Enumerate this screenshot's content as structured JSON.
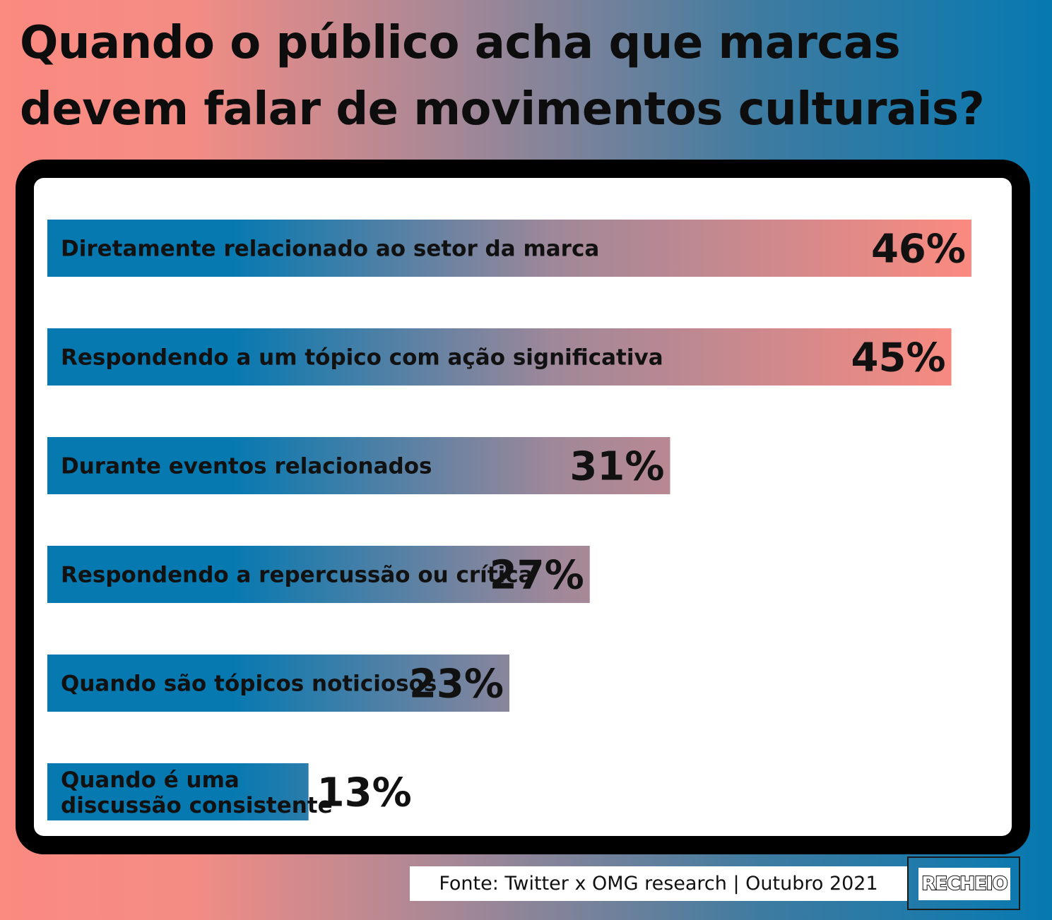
{
  "title_lines": [
    "Quando o público acha que marcas",
    "devem falar de movimentos culturais?"
  ],
  "chart_data": {
    "type": "bar",
    "orientation": "horizontal",
    "title": "Quando o público acha que marcas devem falar de movimentos culturais?",
    "categories": [
      [
        "Diretamente relacionado ao setor da marca"
      ],
      [
        "Respondendo a um tópico com ação significativa"
      ],
      [
        "Durante eventos relacionados"
      ],
      [
        "Respondendo a repercussão ou crítica"
      ],
      [
        "Quando são tópicos noticiosos"
      ],
      [
        "Quando é uma",
        "discussão consistente"
      ]
    ],
    "values": [
      46,
      45,
      31,
      27,
      23,
      13
    ],
    "value_labels": [
      "46%",
      "45%",
      "31%",
      "27%",
      "23%",
      "13%"
    ],
    "unit": "%",
    "xlim": [
      0,
      46
    ],
    "grid": false,
    "legend": "none",
    "colors": {
      "bar_start": "#0679b1",
      "bar_end": "#fb8a80"
    }
  },
  "footer": {
    "source": "Fonte: Twitter x OMG research | Outubro 2021",
    "logo": "RECHEIO"
  }
}
